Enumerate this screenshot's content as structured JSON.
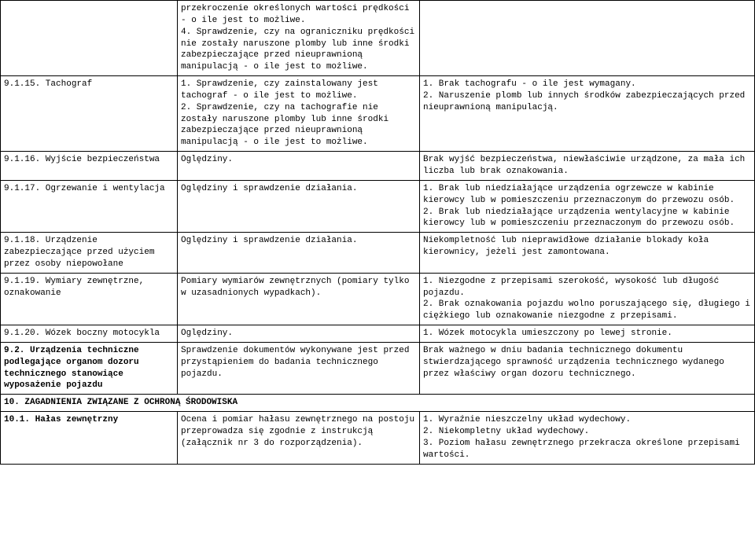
{
  "rows": [
    {
      "c1": "",
      "c2": "przekroczenie określonych wartości prędkości - o ile jest to możliwe.\n4. Sprawdzenie, czy na ograniczniku prędkości nie zostały naruszone plomby lub inne środki zabezpieczające przed nieuprawnioną manipulacją - o ile jest to możliwe.",
      "c3": ""
    },
    {
      "c1": "9.1.15. Tachograf",
      "c2": "1. Sprawdzenie, czy zainstalowany jest tachograf - o ile jest to możliwe.\n2. Sprawdzenie, czy na tachografie nie zostały naruszone plomby lub inne środki zabezpieczające przed nieuprawnioną manipulacją - o ile jest to możliwe.",
      "c3": "1. Brak tachografu - o ile jest wymagany.\n2. Naruszenie plomb lub innych środków zabezpieczających przed nieuprawnioną manipulacją."
    },
    {
      "c1": "9.1.16. Wyjście bezpieczeństwa",
      "c2": "Oględziny.",
      "c3": "Brak wyjść bezpieczeństwa, niewłaściwie urządzone, za mała ich liczba lub brak oznakowania."
    },
    {
      "c1": "9.1.17. Ogrzewanie i wentylacja",
      "c2": "Oględziny i sprawdzenie działania.",
      "c3": "1. Brak lub niedziałające urządzenia ogrzewcze w kabinie kierowcy lub w pomieszczeniu przeznaczonym do przewozu osób.\n2. Brak lub niedziałające urządzenia wentylacyjne w kabinie kierowcy lub w pomieszczeniu przeznaczonym do przewozu osób."
    },
    {
      "c1": "9.1.18. Urządzenie zabezpieczające przed użyciem przez osoby niepowołane",
      "c2": "Oględziny i sprawdzenie działania.",
      "c3": "Niekompletność lub nieprawidłowe działanie blokady koła kierownicy, jeżeli jest zamontowana."
    },
    {
      "c1": "9.1.19. Wymiary zewnętrzne, oznakowanie",
      "c2": "Pomiary wymiarów zewnętrznych (pomiary tylko w uzasadnionych wypadkach).",
      "c3": "1. Niezgodne z przepisami szerokość, wysokość lub długość pojazdu.\n2. Brak oznakowania pojazdu wolno poruszającego się, długiego i ciężkiego lub oznakowanie niezgodne z przepisami."
    },
    {
      "c1": "9.1.20. Wózek boczny motocykla",
      "c2": "Oględziny.",
      "c3": "1. Wózek motocykla umieszczony po lewej stronie."
    },
    {
      "c1_bold": true,
      "c1": "9.2. Urządzenia techniczne podlegające organom dozoru technicznego stanowiące wyposażenie pojazdu",
      "c2": "Sprawdzenie dokumentów wykonywane jest przed przystąpieniem do badania technicznego pojazdu.",
      "c3": "Brak ważnego w dniu badania technicznego dokumentu stwierdzającego sprawność urządzenia technicznego wydanego przez właściwy organ dozoru technicznego."
    }
  ],
  "section10": "10. ZAGADNIENIA ZWIĄZANE Z OCHRONĄ ŚRODOWISKA",
  "row10_1": {
    "c1": "10.1. Hałas zewnętrzny",
    "c2": "Ocena i pomiar hałasu zewnętrznego na postoju przeprowadza się zgodnie z instrukcją (załącznik nr 3 do rozporządzenia).",
    "c3": "1. Wyraźnie nieszczelny układ wydechowy.\n2. Niekompletny układ wydechowy.\n3. Poziom hałasu zewnętrznego przekracza określone przepisami wartości."
  }
}
